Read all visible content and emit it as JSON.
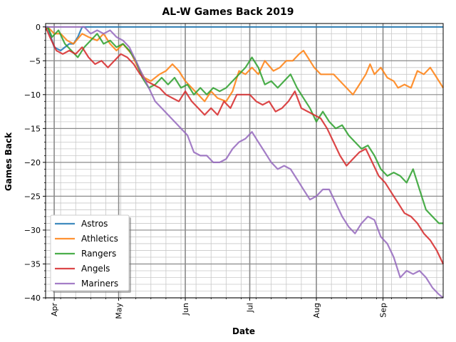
{
  "chart_data": {
    "type": "line",
    "title": "AL-W Games Back 2019",
    "xlabel": "Date",
    "ylabel": "Games Back",
    "ylim": [
      -40,
      0.5
    ],
    "xlim": [
      "2019-03-28",
      "2019-09-29"
    ],
    "grid": true,
    "legend_position": "lower-left",
    "x_ticks": [
      {
        "date": "2019-04-01",
        "label": "Apr"
      },
      {
        "date": "2019-05-01",
        "label": "May"
      },
      {
        "date": "2019-06-01",
        "label": "Jun"
      },
      {
        "date": "2019-07-01",
        "label": "Jul"
      },
      {
        "date": "2019-08-01",
        "label": "Aug"
      },
      {
        "date": "2019-09-01",
        "label": "Sep"
      }
    ],
    "y_ticks": [
      0,
      -5,
      -10,
      -15,
      -20,
      -25,
      -30,
      -35,
      -40
    ],
    "series": [
      {
        "name": "Astros",
        "color": "#1f77b4",
        "points": [
          [
            "2019-03-28",
            0
          ],
          [
            "2019-03-29",
            0
          ],
          [
            "2019-03-30",
            -1
          ],
          [
            "2019-04-01",
            -3
          ],
          [
            "2019-04-04",
            -3.5
          ],
          [
            "2019-04-08",
            -2.5
          ],
          [
            "2019-04-10",
            -2.5
          ],
          [
            "2019-04-12",
            -1.5
          ],
          [
            "2019-04-14",
            0
          ],
          [
            "2019-09-29",
            0
          ]
        ]
      },
      {
        "name": "Athletics",
        "color": "#ff7f0e",
        "points": [
          [
            "2019-03-28",
            -0.5
          ],
          [
            "2019-03-29",
            0
          ],
          [
            "2019-04-01",
            -1
          ],
          [
            "2019-04-04",
            -1
          ],
          [
            "2019-04-07",
            -2
          ],
          [
            "2019-04-10",
            -2.5
          ],
          [
            "2019-04-14",
            -1
          ],
          [
            "2019-04-17",
            -1.5
          ],
          [
            "2019-04-21",
            -2
          ],
          [
            "2019-04-24",
            -1
          ],
          [
            "2019-04-27",
            -2.5
          ],
          [
            "2019-04-30",
            -3.5
          ],
          [
            "2019-05-03",
            -2.5
          ],
          [
            "2019-05-07",
            -4
          ],
          [
            "2019-05-10",
            -6
          ],
          [
            "2019-05-13",
            -7.5
          ],
          [
            "2019-05-16",
            -8
          ],
          [
            "2019-05-20",
            -7
          ],
          [
            "2019-05-23",
            -6.5
          ],
          [
            "2019-05-26",
            -5.5
          ],
          [
            "2019-05-29",
            -6.5
          ],
          [
            "2019-06-01",
            -8
          ],
          [
            "2019-06-04",
            -9
          ],
          [
            "2019-06-07",
            -10
          ],
          [
            "2019-06-10",
            -11
          ],
          [
            "2019-06-13",
            -9.5
          ],
          [
            "2019-06-16",
            -10.5
          ],
          [
            "2019-06-20",
            -11
          ],
          [
            "2019-06-23",
            -9.5
          ],
          [
            "2019-06-26",
            -6.5
          ],
          [
            "2019-06-29",
            -7
          ],
          [
            "2019-07-02",
            -6
          ],
          [
            "2019-07-05",
            -7
          ],
          [
            "2019-07-08",
            -5
          ],
          [
            "2019-07-12",
            -6.5
          ],
          [
            "2019-07-15",
            -6
          ],
          [
            "2019-07-18",
            -5
          ],
          [
            "2019-07-21",
            -5
          ],
          [
            "2019-07-24",
            -4
          ],
          [
            "2019-07-26",
            -3.5
          ],
          [
            "2019-07-28",
            -4.5
          ],
          [
            "2019-07-31",
            -6
          ],
          [
            "2019-08-03",
            -7
          ],
          [
            "2019-08-06",
            -7
          ],
          [
            "2019-08-09",
            -7
          ],
          [
            "2019-08-12",
            -8
          ],
          [
            "2019-08-15",
            -9
          ],
          [
            "2019-08-18",
            -10
          ],
          [
            "2019-08-21",
            -8.5
          ],
          [
            "2019-08-24",
            -7
          ],
          [
            "2019-08-26",
            -5.5
          ],
          [
            "2019-08-28",
            -7
          ],
          [
            "2019-08-31",
            -6
          ],
          [
            "2019-09-03",
            -7.5
          ],
          [
            "2019-09-06",
            -8
          ],
          [
            "2019-09-08",
            -9
          ],
          [
            "2019-09-11",
            -8.5
          ],
          [
            "2019-09-14",
            -9
          ],
          [
            "2019-09-17",
            -6.5
          ],
          [
            "2019-09-20",
            -7
          ],
          [
            "2019-09-23",
            -6
          ],
          [
            "2019-09-26",
            -7.5
          ],
          [
            "2019-09-29",
            -9
          ]
        ]
      },
      {
        "name": "Rangers",
        "color": "#2ca02c",
        "points": [
          [
            "2019-03-28",
            -0.5
          ],
          [
            "2019-03-29",
            0
          ],
          [
            "2019-03-31",
            -1.5
          ],
          [
            "2019-04-03",
            -0.5
          ],
          [
            "2019-04-06",
            -2.5
          ],
          [
            "2019-04-09",
            -3.5
          ],
          [
            "2019-04-12",
            -4.5
          ],
          [
            "2019-04-15",
            -3
          ],
          [
            "2019-04-18",
            -2
          ],
          [
            "2019-04-21",
            -1
          ],
          [
            "2019-04-24",
            -2.5
          ],
          [
            "2019-04-27",
            -2
          ],
          [
            "2019-04-30",
            -3
          ],
          [
            "2019-05-03",
            -2.5
          ],
          [
            "2019-05-06",
            -3.5
          ],
          [
            "2019-05-09",
            -5
          ],
          [
            "2019-05-12",
            -7.5
          ],
          [
            "2019-05-15",
            -9
          ],
          [
            "2019-05-18",
            -8.5
          ],
          [
            "2019-05-21",
            -7.5
          ],
          [
            "2019-05-24",
            -8.5
          ],
          [
            "2019-05-27",
            -7.5
          ],
          [
            "2019-05-30",
            -9
          ],
          [
            "2019-06-02",
            -8.5
          ],
          [
            "2019-06-05",
            -10
          ],
          [
            "2019-06-08",
            -9
          ],
          [
            "2019-06-11",
            -10
          ],
          [
            "2019-06-14",
            -9
          ],
          [
            "2019-06-17",
            -9.5
          ],
          [
            "2019-06-20",
            -9
          ],
          [
            "2019-06-23",
            -8
          ],
          [
            "2019-06-26",
            -7
          ],
          [
            "2019-06-29",
            -6
          ],
          [
            "2019-07-02",
            -4.5
          ],
          [
            "2019-07-05",
            -6
          ],
          [
            "2019-07-08",
            -8.5
          ],
          [
            "2019-07-11",
            -8
          ],
          [
            "2019-07-14",
            -9
          ],
          [
            "2019-07-17",
            -8
          ],
          [
            "2019-07-20",
            -7
          ],
          [
            "2019-07-23",
            -9
          ],
          [
            "2019-07-26",
            -10.5
          ],
          [
            "2019-07-29",
            -12
          ],
          [
            "2019-08-01",
            -14
          ],
          [
            "2019-08-04",
            -12.5
          ],
          [
            "2019-08-07",
            -14
          ],
          [
            "2019-08-10",
            -15
          ],
          [
            "2019-08-13",
            -14.5
          ],
          [
            "2019-08-16",
            -16
          ],
          [
            "2019-08-19",
            -17
          ],
          [
            "2019-08-22",
            -18
          ],
          [
            "2019-08-25",
            -17.5
          ],
          [
            "2019-08-28",
            -19
          ],
          [
            "2019-08-31",
            -21
          ],
          [
            "2019-09-03",
            -22
          ],
          [
            "2019-09-06",
            -21.5
          ],
          [
            "2019-09-09",
            -22
          ],
          [
            "2019-09-12",
            -23
          ],
          [
            "2019-09-15",
            -21
          ],
          [
            "2019-09-18",
            -24
          ],
          [
            "2019-09-21",
            -27
          ],
          [
            "2019-09-24",
            -28
          ],
          [
            "2019-09-27",
            -29
          ],
          [
            "2019-09-29",
            -29
          ]
        ]
      },
      {
        "name": "Angels",
        "color": "#d62728",
        "points": [
          [
            "2019-03-28",
            0
          ],
          [
            "2019-03-30",
            -1.5
          ],
          [
            "2019-04-02",
            -3.5
          ],
          [
            "2019-04-05",
            -4
          ],
          [
            "2019-04-08",
            -3.5
          ],
          [
            "2019-04-11",
            -4
          ],
          [
            "2019-04-14",
            -3
          ],
          [
            "2019-04-17",
            -4.5
          ],
          [
            "2019-04-20",
            -5.5
          ],
          [
            "2019-04-23",
            -5
          ],
          [
            "2019-04-26",
            -6
          ],
          [
            "2019-04-29",
            -5
          ],
          [
            "2019-05-02",
            -4
          ],
          [
            "2019-05-05",
            -4.5
          ],
          [
            "2019-05-08",
            -5.5
          ],
          [
            "2019-05-11",
            -7
          ],
          [
            "2019-05-14",
            -8
          ],
          [
            "2019-05-17",
            -8.5
          ],
          [
            "2019-05-20",
            -9
          ],
          [
            "2019-05-23",
            -10
          ],
          [
            "2019-05-26",
            -10.5
          ],
          [
            "2019-05-29",
            -11
          ],
          [
            "2019-06-01",
            -9.5
          ],
          [
            "2019-06-04",
            -11
          ],
          [
            "2019-06-07",
            -12
          ],
          [
            "2019-06-10",
            -13
          ],
          [
            "2019-06-13",
            -12
          ],
          [
            "2019-06-16",
            -13
          ],
          [
            "2019-06-19",
            -11
          ],
          [
            "2019-06-22",
            -12
          ],
          [
            "2019-06-25",
            -10
          ],
          [
            "2019-06-28",
            -10
          ],
          [
            "2019-07-01",
            -10
          ],
          [
            "2019-07-04",
            -11
          ],
          [
            "2019-07-07",
            -11.5
          ],
          [
            "2019-07-10",
            -11
          ],
          [
            "2019-07-13",
            -12.5
          ],
          [
            "2019-07-16",
            -12
          ],
          [
            "2019-07-19",
            -11
          ],
          [
            "2019-07-22",
            -9.5
          ],
          [
            "2019-07-25",
            -12
          ],
          [
            "2019-07-28",
            -12.5
          ],
          [
            "2019-07-31",
            -13
          ],
          [
            "2019-08-03",
            -13.5
          ],
          [
            "2019-08-06",
            -15
          ],
          [
            "2019-08-09",
            -17
          ],
          [
            "2019-08-12",
            -19
          ],
          [
            "2019-08-15",
            -20.5
          ],
          [
            "2019-08-18",
            -19.5
          ],
          [
            "2019-08-21",
            -18.5
          ],
          [
            "2019-08-24",
            -18
          ],
          [
            "2019-08-27",
            -20
          ],
          [
            "2019-08-30",
            -22
          ],
          [
            "2019-09-02",
            -23
          ],
          [
            "2019-09-05",
            -24.5
          ],
          [
            "2019-09-08",
            -26
          ],
          [
            "2019-09-11",
            -27.5
          ],
          [
            "2019-09-14",
            -28
          ],
          [
            "2019-09-17",
            -29
          ],
          [
            "2019-09-20",
            -30.5
          ],
          [
            "2019-09-23",
            -31.5
          ],
          [
            "2019-09-26",
            -33
          ],
          [
            "2019-09-29",
            -35
          ]
        ]
      },
      {
        "name": "Mariners",
        "color": "#9467bd",
        "points": [
          [
            "2019-03-28",
            0
          ],
          [
            "2019-03-29",
            0
          ],
          [
            "2019-03-31",
            0
          ],
          [
            "2019-04-05",
            0
          ],
          [
            "2019-04-10",
            0
          ],
          [
            "2019-04-15",
            0
          ],
          [
            "2019-04-18",
            -1
          ],
          [
            "2019-04-21",
            -0.5
          ],
          [
            "2019-04-24",
            -1
          ],
          [
            "2019-04-27",
            -0.5
          ],
          [
            "2019-04-30",
            -1.5
          ],
          [
            "2019-05-03",
            -2
          ],
          [
            "2019-05-06",
            -3
          ],
          [
            "2019-05-09",
            -5
          ],
          [
            "2019-05-12",
            -7
          ],
          [
            "2019-05-15",
            -9
          ],
          [
            "2019-05-18",
            -11
          ],
          [
            "2019-05-21",
            -12
          ],
          [
            "2019-05-24",
            -13
          ],
          [
            "2019-05-27",
            -14
          ],
          [
            "2019-05-30",
            -15
          ],
          [
            "2019-06-02",
            -16
          ],
          [
            "2019-06-05",
            -18.5
          ],
          [
            "2019-06-08",
            -19
          ],
          [
            "2019-06-11",
            -19
          ],
          [
            "2019-06-14",
            -20
          ],
          [
            "2019-06-17",
            -20
          ],
          [
            "2019-06-20",
            -19.5
          ],
          [
            "2019-06-23",
            -18
          ],
          [
            "2019-06-26",
            -17
          ],
          [
            "2019-06-29",
            -16.5
          ],
          [
            "2019-07-02",
            -15.5
          ],
          [
            "2019-07-05",
            -17
          ],
          [
            "2019-07-08",
            -18.5
          ],
          [
            "2019-07-11",
            -20
          ],
          [
            "2019-07-14",
            -21
          ],
          [
            "2019-07-17",
            -20.5
          ],
          [
            "2019-07-20",
            -21
          ],
          [
            "2019-07-23",
            -22.5
          ],
          [
            "2019-07-26",
            -24
          ],
          [
            "2019-07-29",
            -25.5
          ],
          [
            "2019-08-01",
            -25
          ],
          [
            "2019-08-04",
            -24
          ],
          [
            "2019-08-07",
            -24
          ],
          [
            "2019-08-10",
            -26
          ],
          [
            "2019-08-13",
            -28
          ],
          [
            "2019-08-16",
            -29.5
          ],
          [
            "2019-08-19",
            -30.5
          ],
          [
            "2019-08-22",
            -29
          ],
          [
            "2019-08-25",
            -28
          ],
          [
            "2019-08-28",
            -28.5
          ],
          [
            "2019-08-31",
            -31
          ],
          [
            "2019-09-03",
            -32
          ],
          [
            "2019-09-06",
            -34
          ],
          [
            "2019-09-09",
            -37
          ],
          [
            "2019-09-12",
            -36
          ],
          [
            "2019-09-15",
            -36.5
          ],
          [
            "2019-09-18",
            -36
          ],
          [
            "2019-09-21",
            -37
          ],
          [
            "2019-09-24",
            -38.5
          ],
          [
            "2019-09-27",
            -39.5
          ],
          [
            "2019-09-29",
            -40
          ]
        ]
      }
    ]
  }
}
